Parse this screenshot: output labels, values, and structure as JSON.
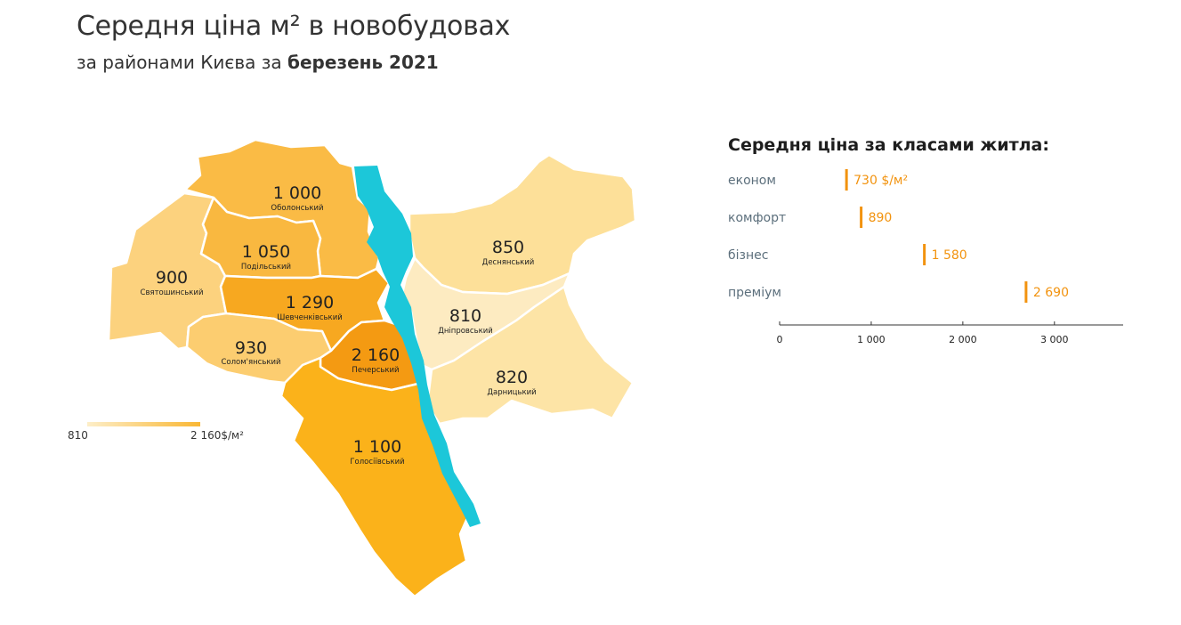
{
  "header": {
    "title": "Середня ціна м² в новобудовах",
    "subtitle_prefix": "за районами Києва за ",
    "subtitle_bold": "березень 2021"
  },
  "colors": {
    "river": "#1cc7d9",
    "scale_low": "#fdeec8",
    "scale_high": "#f9b734",
    "accent": "#f2930f",
    "border": "#ffffff"
  },
  "map": {
    "districts": [
      {
        "id": "obolonskyi",
        "name": "Оболонський",
        "value": "1 000",
        "color": "#fabb45"
      },
      {
        "id": "podilskyi",
        "name": "Подільський",
        "value": "1 050",
        "color": "#f9b840"
      },
      {
        "id": "sviatoshynskyi",
        "name": "Святошинський",
        "value": "900",
        "color": "#fcd27e"
      },
      {
        "id": "shevchenkivskyi",
        "name": "Шевченківський",
        "value": "1 290",
        "color": "#f7a820"
      },
      {
        "id": "solomianskyi",
        "name": "Солом'янський",
        "value": "930",
        "color": "#fccd70"
      },
      {
        "id": "pecherskyi",
        "name": "Печерський",
        "value": "2 160",
        "color": "#f49a12"
      },
      {
        "id": "holosiivskyi",
        "name": "Голосіївський",
        "value": "1 100",
        "color": "#fbb21a"
      },
      {
        "id": "desnianskyi",
        "name": "Деснянський",
        "value": "850",
        "color": "#fde099"
      },
      {
        "id": "dniprovskyi",
        "name": "Дніпровський",
        "value": "810",
        "color": "#fdebc1"
      },
      {
        "id": "darnytskyi",
        "name": "Дарницький",
        "value": "820",
        "color": "#fde4a6"
      }
    ],
    "legend": {
      "min_label": "810",
      "max_label": "2 160$/м²"
    }
  },
  "class_chart_title": "Середня ціна за класами житла:",
  "chart_data": {
    "type": "bar",
    "orientation": "horizontal",
    "title": "Середня ціна за класами житла:",
    "categories": [
      "економ",
      "комфорт",
      "бізнес",
      "преміум"
    ],
    "values": [
      730,
      890,
      1580,
      2690
    ],
    "value_labels": [
      "730 $/м²",
      "890",
      "1 580",
      "2 690"
    ],
    "xlim": [
      0,
      3750
    ],
    "xticks": [
      0,
      1000,
      2000,
      3000
    ],
    "xtick_labels": [
      "0",
      "1 000",
      "2 000",
      "3 000"
    ],
    "bar_color": "#f2930f",
    "grid": false
  }
}
